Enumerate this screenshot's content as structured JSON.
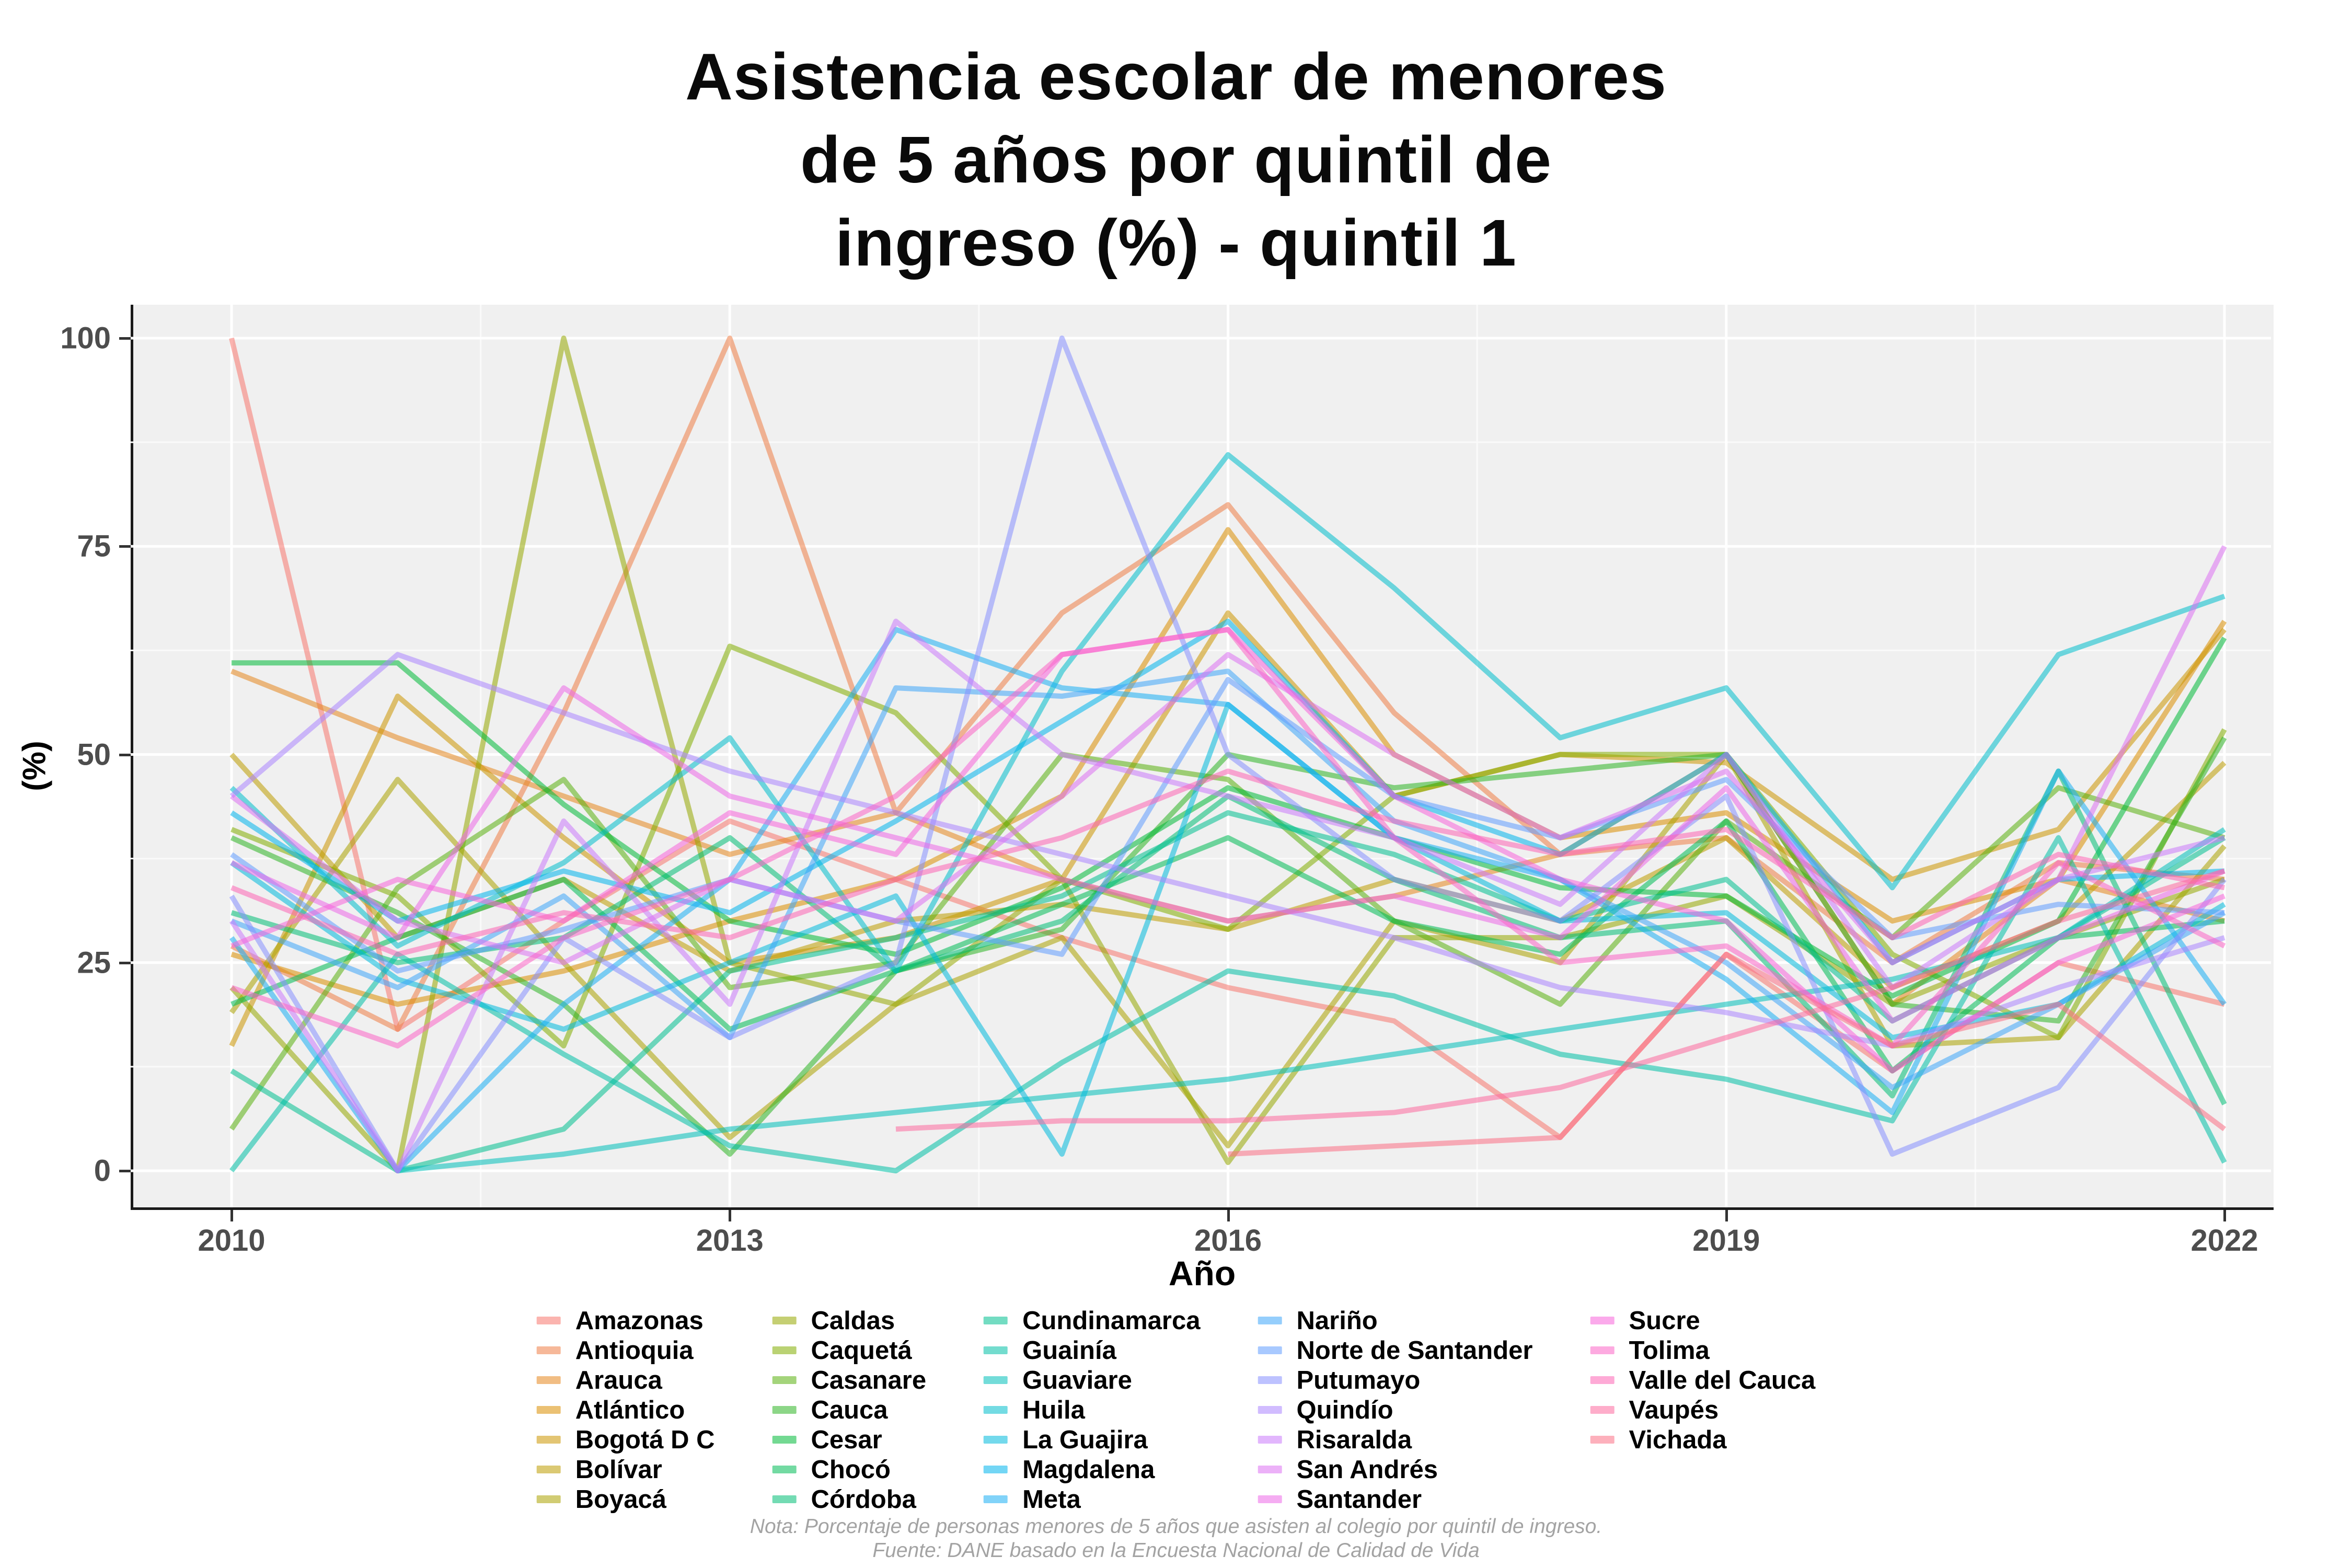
{
  "title": {
    "lines": [
      "Asistencia escolar de menores",
      "de 5 años por quintil de",
      "ingreso (%) - quintil 1"
    ]
  },
  "axes": {
    "y": {
      "label": "(%)",
      "ticks": [
        0,
        25,
        50,
        75,
        100
      ]
    },
    "x": {
      "label": "Año",
      "ticks": [
        2010,
        2013,
        2016,
        2019,
        2022
      ]
    }
  },
  "footnote": {
    "line1": "Nota: Porcentaje de personas menores de 5 años que asisten al colegio por quintil de ingreso.",
    "line2": "Fuente: DANE basado en la Encuesta Nacional de Calidad de Vida"
  },
  "colors": {
    "panel_bg": "#f0f0f0",
    "grid_major": "#ffffff",
    "grid_minor": "#fafafa",
    "axis_line": "#1a1a1a",
    "axis_text": "#4d4d4d",
    "title_text": "#0a0a0a",
    "footnote_text": "#a3a3a3"
  },
  "chart_data": {
    "type": "line",
    "title": "Asistencia escolar de menores de 5 años por quintil de ingreso (%) - quintil 1",
    "xlabel": "Año",
    "ylabel": "(%)",
    "x": [
      2010,
      2011,
      2012,
      2013,
      2014,
      2015,
      2016,
      2017,
      2018,
      2019,
      2020,
      2021,
      2022
    ],
    "xlim": [
      2009.4,
      2022.3
    ],
    "ylim": [
      0,
      100
    ],
    "grid": true,
    "legend_position": "bottom",
    "line_opacity": 0.55,
    "line_width": 10,
    "series": [
      {
        "name": "Amazonas",
        "color": "#F8766D",
        "values": [
          100,
          17,
          30,
          42,
          35,
          28,
          22,
          18,
          4,
          26,
          12,
          25,
          20
        ]
      },
      {
        "name": "Antioquia",
        "color": "#EF7E45",
        "values": [
          27,
          17,
          55,
          100,
          43,
          67,
          80,
          55,
          38,
          40,
          25,
          37,
          35
        ]
      },
      {
        "name": "Arauca",
        "color": "#E5861E",
        "values": [
          60,
          52,
          45,
          38,
          43,
          35,
          30,
          33,
          38,
          50,
          20,
          35,
          30
        ]
      },
      {
        "name": "Atlántico",
        "color": "#DA8E00",
        "values": [
          26,
          20,
          24,
          30,
          35,
          45,
          77,
          50,
          40,
          43,
          30,
          35,
          66
        ]
      },
      {
        "name": "Bogotá D C",
        "color": "#CC9500",
        "values": [
          15,
          57,
          40,
          25,
          28,
          35,
          67,
          45,
          50,
          49,
          35,
          41,
          65
        ]
      },
      {
        "name": "Bolívar",
        "color": "#BE9C00",
        "values": [
          50,
          28,
          35,
          24,
          30,
          32,
          29,
          35,
          30,
          40,
          22,
          30,
          49
        ]
      },
      {
        "name": "Boyacá",
        "color": "#ACA200",
        "values": [
          19,
          47,
          25,
          4,
          20,
          28,
          3,
          30,
          25,
          50,
          15,
          16,
          39
        ]
      },
      {
        "name": "Caldas",
        "color": "#96A700",
        "values": [
          22,
          0,
          100,
          25,
          20,
          35,
          1,
          28,
          28,
          33,
          20,
          28,
          35
        ]
      },
      {
        "name": "Caquetá",
        "color": "#81AD00",
        "values": [
          41,
          33,
          15,
          63,
          55,
          35,
          29,
          45,
          50,
          50,
          26,
          16,
          53
        ]
      },
      {
        "name": "Casanare",
        "color": "#5AB10F",
        "values": [
          5,
          34,
          47,
          22,
          25,
          50,
          47,
          30,
          20,
          42,
          28,
          46,
          40
        ]
      },
      {
        "name": "Cauca",
        "color": "#2DB524",
        "values": [
          40,
          31,
          20,
          2,
          24,
          29,
          50,
          46,
          48,
          50,
          20,
          18,
          52
        ]
      },
      {
        "name": "Cesar",
        "color": "#00BA38",
        "values": [
          61,
          61,
          44,
          30,
          26,
          34,
          46,
          40,
          34,
          33,
          21,
          30,
          64
        ]
      },
      {
        "name": "Chocó",
        "color": "#00BC56",
        "values": [
          20,
          28,
          35,
          17,
          24,
          32,
          40,
          30,
          26,
          42,
          12,
          28,
          30
        ]
      },
      {
        "name": "Córdoba",
        "color": "#00BE75",
        "values": [
          31,
          25,
          28,
          40,
          24,
          30,
          45,
          35,
          28,
          30,
          9,
          48,
          8
        ]
      },
      {
        "name": "Cundinamarca",
        "color": "#00C090",
        "values": [
          12,
          0,
          5,
          24,
          28,
          33,
          43,
          38,
          30,
          35,
          18,
          28,
          40
        ]
      },
      {
        "name": "Guainía",
        "color": "#00C0A5",
        "values": [
          0,
          26,
          14,
          3,
          0,
          13,
          24,
          21,
          14,
          11,
          6,
          40,
          1
        ]
      },
      {
        "name": "Guaviare",
        "color": "#00BFBA",
        "values": [
          null,
          0,
          2,
          5,
          7,
          9,
          11,
          14,
          17,
          20,
          23,
          28,
          41
        ]
      },
      {
        "name": "Huila",
        "color": "#00BDCC",
        "values": [
          46,
          27,
          37,
          52,
          24,
          60,
          86,
          70,
          52,
          58,
          34,
          62,
          69
        ]
      },
      {
        "name": "La Guajira",
        "color": "#00B9DC",
        "values": [
          37,
          23,
          17,
          25,
          33,
          2,
          56,
          40,
          30,
          31,
          16,
          20,
          32
        ]
      },
      {
        "name": "Magdalena",
        "color": "#00B5EC",
        "values": [
          43,
          30,
          36,
          31,
          42,
          54,
          66,
          45,
          38,
          50,
          25,
          35,
          36
        ]
      },
      {
        "name": "Meta",
        "color": "#1AAEF4",
        "values": [
          28,
          0,
          20,
          35,
          65,
          58,
          56,
          40,
          35,
          23,
          7,
          48,
          20
        ]
      },
      {
        "name": "Nariño",
        "color": "#3EA5FA",
        "values": [
          30,
          22,
          33,
          16,
          58,
          57,
          60,
          42,
          35,
          25,
          10,
          20,
          31
        ]
      },
      {
        "name": "Norte de Santander",
        "color": "#619CFF",
        "values": [
          38,
          24,
          29,
          35,
          30,
          26,
          59,
          45,
          40,
          47,
          28,
          32,
          31
        ]
      },
      {
        "name": "Putumayo",
        "color": "#8690FF",
        "values": [
          33,
          0,
          28,
          16,
          25,
          100,
          50,
          35,
          30,
          45,
          2,
          10,
          35
        ]
      },
      {
        "name": "Quindío",
        "color": "#AB85FF",
        "values": [
          45,
          62,
          55,
          48,
          43,
          38,
          33,
          28,
          22,
          19,
          15,
          22,
          28
        ]
      },
      {
        "name": "Risaralda",
        "color": "#CB7AFC",
        "values": [
          30,
          0,
          42,
          20,
          66,
          50,
          45,
          40,
          32,
          50,
          22,
          35,
          40
        ]
      },
      {
        "name": "San Andrés",
        "color": "#DC71F2",
        "values": [
          45,
          30,
          25,
          35,
          30,
          45,
          62,
          50,
          40,
          48,
          25,
          35,
          75
        ]
      },
      {
        "name": "Santander",
        "color": "#ED68E8",
        "values": [
          37,
          28,
          58,
          45,
          40,
          35,
          30,
          33,
          28,
          46,
          18,
          28,
          36
        ]
      },
      {
        "name": "Sucre",
        "color": "#F764DA",
        "values": [
          27,
          35,
          30,
          43,
          38,
          62,
          65,
          45,
          35,
          30,
          12,
          25,
          33
        ]
      },
      {
        "name": "Tolima",
        "color": "#FB64C7",
        "values": [
          22,
          15,
          28,
          35,
          45,
          62,
          65,
          40,
          25,
          27,
          15,
          37,
          27
        ]
      },
      {
        "name": "Valle del Cauca",
        "color": "#FE64B4",
        "values": [
          34,
          26,
          31,
          28,
          35,
          40,
          48,
          42,
          38,
          41,
          28,
          38,
          34
        ]
      },
      {
        "name": "Vaupés",
        "color": "#FD699E",
        "values": [
          null,
          null,
          null,
          null,
          5,
          6,
          6,
          7,
          10,
          16,
          22,
          30,
          36
        ]
      },
      {
        "name": "Vichada",
        "color": "#FB7085",
        "values": [
          null,
          null,
          null,
          null,
          null,
          null,
          2,
          3,
          4,
          26,
          15,
          20,
          5
        ]
      }
    ]
  }
}
